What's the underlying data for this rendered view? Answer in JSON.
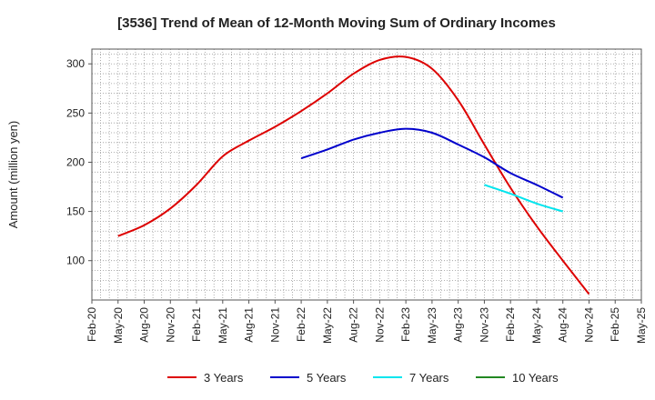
{
  "chart_data": {
    "type": "line",
    "title": "[3536]  Trend of Mean of 12-Month Moving Sum of Ordinary Incomes",
    "xlabel": "",
    "ylabel": "Amount (million yen)",
    "ylim": [
      60,
      315
    ],
    "yticks": [
      100,
      150,
      200,
      250,
      300
    ],
    "categories": [
      "Feb-20",
      "May-20",
      "Aug-20",
      "Nov-20",
      "Feb-21",
      "May-21",
      "Aug-21",
      "Nov-21",
      "Feb-22",
      "May-22",
      "Aug-22",
      "Nov-22",
      "Feb-23",
      "May-23",
      "Aug-23",
      "Nov-23",
      "Feb-24",
      "May-24",
      "Aug-24",
      "Nov-24",
      "Feb-25",
      "May-25"
    ],
    "grid": true,
    "legend_position": "bottom",
    "series": [
      {
        "name": "3 Years",
        "color": "#dd0000",
        "values": [
          null,
          125,
          136,
          153,
          177,
          206,
          222,
          236,
          252,
          270,
          290,
          304,
          307,
          295,
          263,
          218,
          174,
          135,
          100,
          66,
          null,
          null
        ]
      },
      {
        "name": "5 Years",
        "color": "#0000cc",
        "values": [
          null,
          null,
          null,
          null,
          null,
          null,
          null,
          null,
          204,
          213,
          223,
          230,
          234,
          230,
          218,
          205,
          189,
          177,
          164,
          null,
          null,
          null
        ]
      },
      {
        "name": "7 Years",
        "color": "#00e5ee",
        "values": [
          null,
          null,
          null,
          null,
          null,
          null,
          null,
          null,
          null,
          null,
          null,
          null,
          null,
          null,
          null,
          177,
          168,
          158,
          150,
          null,
          null,
          null
        ]
      },
      {
        "name": "10 Years",
        "color": "#228822",
        "values": [
          null,
          null,
          null,
          null,
          null,
          null,
          null,
          null,
          null,
          null,
          null,
          null,
          null,
          null,
          null,
          null,
          null,
          null,
          null,
          null,
          null,
          null
        ]
      }
    ]
  }
}
